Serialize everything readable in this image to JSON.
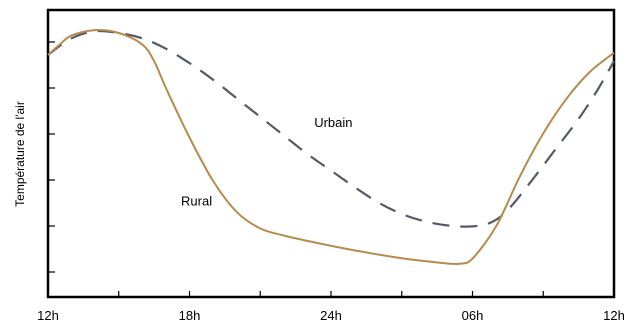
{
  "chart_data": {
    "type": "line",
    "title": "",
    "xlabel": "",
    "ylabel": "Température de l'air",
    "x_ticks": [
      "12h",
      "18h",
      "24h",
      "06h",
      "12h"
    ],
    "x_unit": "hours after 12h (noon)",
    "xlim": [
      0,
      24
    ],
    "ylim": [
      0,
      6
    ],
    "y_tick_count": 6,
    "grid": false,
    "legend": "none",
    "series": [
      {
        "name": "Urbain",
        "style": "dashed",
        "color": "#555a66",
        "x": [
          0,
          1.0,
          2.0,
          3.0,
          4.0,
          5.0,
          6.0,
          7.0,
          8.0,
          9.0,
          10.0,
          11.0,
          12.0,
          13.0,
          14.0,
          15.0,
          16.0,
          17.0,
          18.0,
          18.8,
          19.5,
          20.5,
          21.5,
          22.5,
          23.3,
          24.0
        ],
        "values": [
          5.35,
          5.75,
          5.92,
          5.88,
          5.75,
          5.5,
          5.15,
          4.75,
          4.3,
          3.85,
          3.4,
          2.95,
          2.55,
          2.15,
          1.78,
          1.5,
          1.32,
          1.22,
          1.2,
          1.3,
          1.6,
          2.3,
          3.05,
          3.8,
          4.5,
          5.2
        ]
      },
      {
        "name": "Rural",
        "style": "solid",
        "color": "#b78a4e",
        "x": [
          0,
          0.5,
          1.0,
          2.0,
          3.0,
          4.0,
          4.5,
          5.0,
          6.0,
          7.0,
          8.0,
          9.0,
          10.0,
          11.0,
          12.0,
          13.0,
          14.0,
          15.0,
          16.0,
          17.0,
          17.5,
          18.0,
          19.0,
          20.0,
          21.0,
          22.0,
          23.0,
          24.0
        ],
        "values": [
          5.35,
          5.6,
          5.82,
          5.95,
          5.88,
          5.6,
          5.2,
          4.55,
          3.35,
          2.3,
          1.55,
          1.15,
          0.98,
          0.85,
          0.73,
          0.62,
          0.52,
          0.43,
          0.36,
          0.3,
          0.3,
          0.42,
          1.2,
          2.4,
          3.45,
          4.3,
          4.95,
          5.4
        ]
      }
    ],
    "annotations": [
      {
        "text": "Urbain",
        "x": 12.1,
        "y": 3.6
      },
      {
        "text": "Rural",
        "x": 6.3,
        "y": 1.7
      }
    ]
  }
}
